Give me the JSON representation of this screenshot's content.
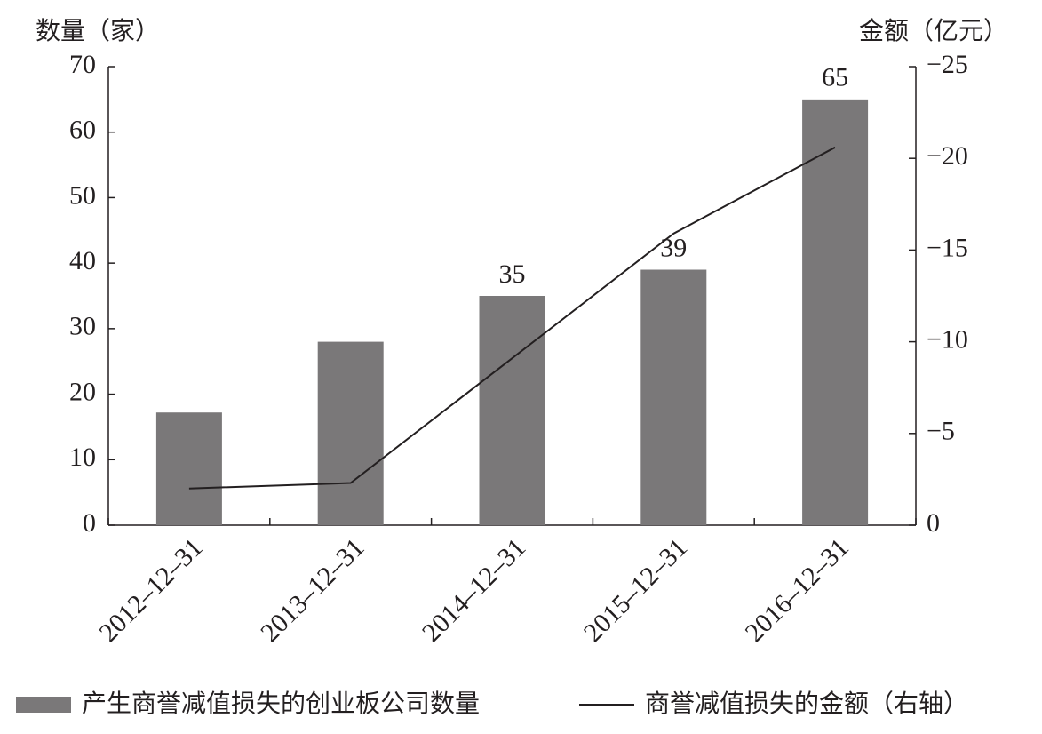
{
  "chart_data": {
    "type": "bar",
    "y_label": "数量（家）",
    "y2_label": "金额（亿元）",
    "categories": [
      "2012–12–31",
      "2013–12–31",
      "2014–12–31",
      "2015–12–31",
      "2016–12–31"
    ],
    "series": [
      {
        "name": "产生商誉减值损失的创业板公司数量",
        "color": "#7a7879",
        "type": "bar",
        "values": [
          17.2,
          28,
          35,
          39,
          65
        ],
        "value_labels": [
          null,
          null,
          "35",
          "39",
          "65"
        ]
      },
      {
        "name": "商誉减值损失的金额（右轴）",
        "color": "#231f20",
        "type": "line",
        "axis": "y2",
        "values": [
          -2.0,
          -2.3,
          -9.1,
          -15.9,
          -20.6
        ]
      }
    ],
    "ylim": [
      0,
      70
    ],
    "yticks": [
      0,
      10,
      20,
      30,
      40,
      50,
      60,
      70
    ],
    "y2lim": [
      0,
      -25
    ],
    "y2ticks": [
      0,
      {
        "value": -5,
        "label": "−5"
      },
      {
        "value": -10,
        "label": "−10"
      },
      {
        "value": -15,
        "label": "−15"
      },
      {
        "value": -20,
        "label": "−20"
      },
      {
        "value": -25,
        "label": "−25"
      }
    ]
  }
}
